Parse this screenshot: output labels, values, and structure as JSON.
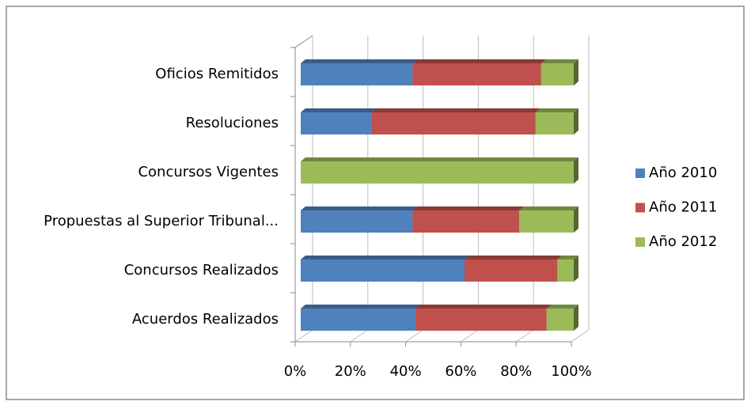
{
  "chart_data": {
    "type": "bar",
    "orientation": "horizontal",
    "stacked": "percent",
    "categories": [
      "Acuerdos Realizados",
      "Concursos Realizados",
      "Propuestas al Superior Tribunal...",
      "Concursos Vigentes",
      "Resoluciones",
      "Oficios Remitidos"
    ],
    "series": [
      {
        "name": "Año 2010",
        "color": "#4f81bd",
        "values": [
          42,
          60,
          41,
          0,
          26,
          41
        ]
      },
      {
        "name": "Año 2011",
        "color": "#c0504d",
        "values": [
          48,
          34,
          39,
          0,
          60,
          47
        ]
      },
      {
        "name": "Año 2012",
        "color": "#9bbb59",
        "values": [
          10,
          6,
          20,
          100,
          14,
          12
        ]
      }
    ],
    "xlim": [
      0,
      100
    ],
    "xticks": [
      {
        "value": 0,
        "label": "0%"
      },
      {
        "value": 20,
        "label": "20%"
      },
      {
        "value": 40,
        "label": "40%"
      },
      {
        "value": 60,
        "label": "60%"
      },
      {
        "value": 80,
        "label": "80%"
      },
      {
        "value": 100,
        "label": "100%"
      }
    ],
    "grid": true,
    "legend": "right"
  }
}
